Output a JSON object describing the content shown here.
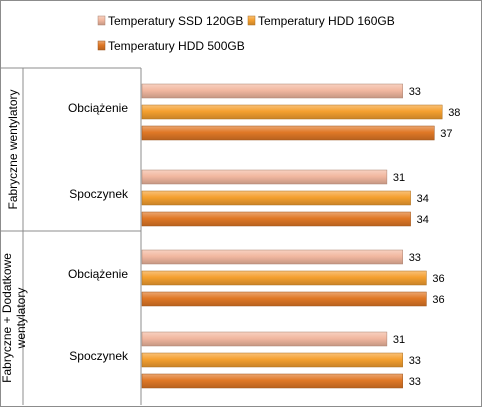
{
  "chart_data": {
    "type": "bar",
    "orientation": "horizontal",
    "title": "",
    "xlabel": "",
    "ylabel": "",
    "xlim": [
      0,
      40
    ],
    "grid": false,
    "legend_position": "top",
    "groups": [
      {
        "label": "Fabryczne wentylatory",
        "categories": [
          "Obciążenie",
          "Spoczynek"
        ]
      },
      {
        "label": "Fabryczne + Dodatkowe wentylatory",
        "categories": [
          "Obciążenie",
          "Spoczynek"
        ]
      }
    ],
    "categories": [
      "Fabryczne wentylatory / Obciążenie",
      "Fabryczne wentylatory / Spoczynek",
      "Fabryczne + Dodatkowe wentylatory / Obciążenie",
      "Fabryczne + Dodatkowe wentylatory / Spoczynek"
    ],
    "series": [
      {
        "name": "Temperatury SSD 120GB",
        "color": "#f2b8a0",
        "values": [
          33,
          31,
          33,
          31
        ]
      },
      {
        "name": "Temperatury HDD 160GB",
        "color": "#f5a030",
        "values": [
          38,
          34,
          36,
          33
        ]
      },
      {
        "name": "Temperatury HDD 500GB",
        "color": "#e07826",
        "values": [
          37,
          34,
          36,
          33
        ]
      }
    ]
  }
}
